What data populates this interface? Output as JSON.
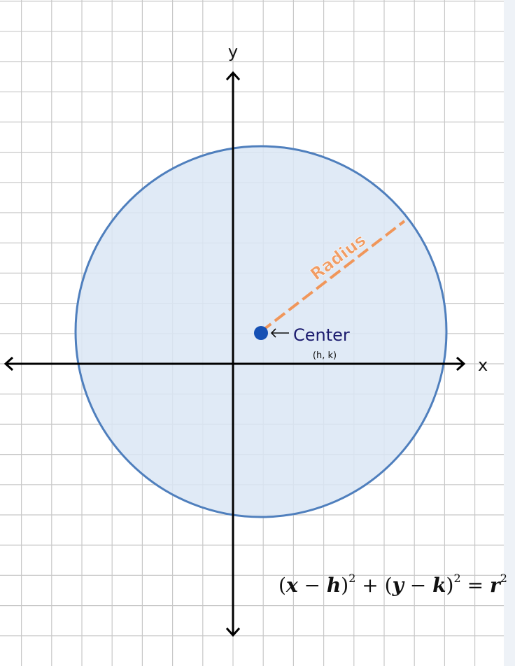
{
  "axes": {
    "x_label": "x",
    "y_label": "y"
  },
  "labels": {
    "radius": "Radius",
    "center": "Center",
    "center_coords": "(h, k)"
  },
  "equation": {
    "open_paren_1": "(",
    "x_var": "x",
    "minus_1": " − ",
    "h_var": "h",
    "close_paren_1": ")",
    "exponent_1": "2",
    "plus": " + ",
    "open_paren_2": "(",
    "y_var": "y",
    "minus_2": " − ",
    "k_var": "k",
    "close_paren_2": ")",
    "exponent_2": "2",
    "equals": " = ",
    "r_var": "r",
    "exponent_3": "2"
  },
  "colors": {
    "grid": "#c8c8c8",
    "circle_fill": "#dae6f4",
    "circle_stroke": "#4f7fbd",
    "radius_line": "#f0965a",
    "radius_label": "#f09c64",
    "center_dot": "#1550b4",
    "center_label": "#1b1b6e",
    "axis": "#000000"
  }
}
